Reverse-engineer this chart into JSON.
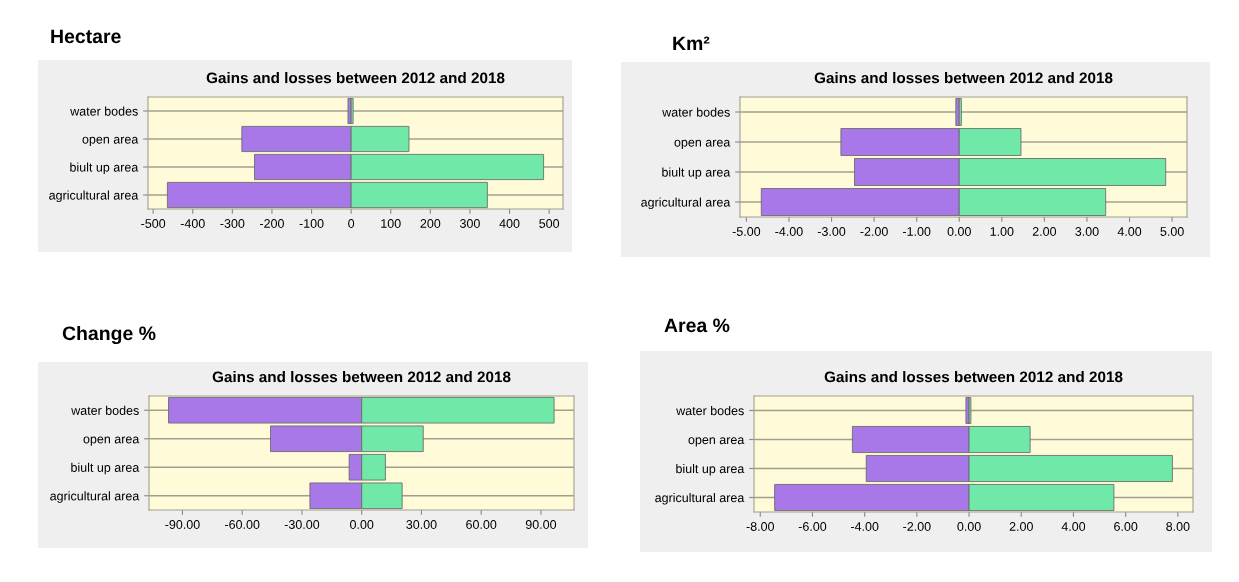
{
  "chart_data": [
    {
      "type": "bar",
      "orientation": "horizontal",
      "stacked": true,
      "title": "Hectare",
      "subtitle": "Gains and losses between 2012 and 2018",
      "categories": [
        "water bodes",
        "open area",
        "biult up area",
        "agricultural area"
      ],
      "grid": "y",
      "series": [
        {
          "color": "#a878e8",
          "values": [
            -8,
            -276,
            -244,
            -464
          ]
        },
        {
          "color": "#70e8a8",
          "values": [
            5,
            146,
            486,
            344
          ]
        }
      ],
      "xlim": [
        -513,
        535
      ],
      "xticks": [
        -500,
        -400,
        -300,
        -200,
        -100,
        0,
        100,
        200,
        300,
        400,
        500
      ]
    },
    {
      "type": "bar",
      "orientation": "horizontal",
      "stacked": true,
      "title": "Km²",
      "subtitle": "Gains and losses between 2012 and 2018",
      "categories": [
        "water bodes",
        "open area",
        "biult up area",
        "agricultural area"
      ],
      "grid": "y",
      "series": [
        {
          "color": "#a878e8",
          "values": [
            -0.08,
            -2.78,
            -2.46,
            -4.65
          ]
        },
        {
          "color": "#70e8a8",
          "values": [
            0.05,
            1.45,
            4.85,
            3.44
          ]
        }
      ],
      "xlim": [
        -5.15,
        5.35
      ],
      "xticks": [
        {
          "value": -5,
          "label": "-5.00"
        },
        {
          "value": -4,
          "label": "-4.00"
        },
        {
          "value": -3,
          "label": "-3.00"
        },
        {
          "value": -2,
          "label": "-2.00"
        },
        {
          "value": -1,
          "label": "-1.00"
        },
        {
          "value": 0,
          "label": "0.00"
        },
        {
          "value": 1,
          "label": "1.00"
        },
        {
          "value": 2,
          "label": "2.00"
        },
        {
          "value": 3,
          "label": "3.00"
        },
        {
          "value": 4,
          "label": "4.00"
        },
        {
          "value": 5,
          "label": "5.00"
        }
      ]
    },
    {
      "type": "bar",
      "orientation": "horizontal",
      "stacked": true,
      "title": "Change %",
      "subtitle": "Gains and losses between 2012 and 2018",
      "categories": [
        "water bodes",
        "open area",
        "biult up area",
        "agricultural area"
      ],
      "grid": "y",
      "series": [
        {
          "color": "#a878e8",
          "values": [
            -97,
            -45.8,
            -6.3,
            -26
          ]
        },
        {
          "color": "#70e8a8",
          "values": [
            96.6,
            30.9,
            11.9,
            20.3
          ]
        }
      ],
      "xlim": [
        -106.8,
        106.6
      ],
      "xticks": [
        {
          "value": -90,
          "label": "-90.00"
        },
        {
          "value": -60,
          "label": "-60.00"
        },
        {
          "value": -30,
          "label": "-30.00"
        },
        {
          "value": 0,
          "label": "0.00"
        },
        {
          "value": 30,
          "label": "30.00"
        },
        {
          "value": 60,
          "label": "60.00"
        },
        {
          "value": 90,
          "label": "90.00"
        }
      ]
    },
    {
      "type": "bar",
      "orientation": "horizontal",
      "stacked": true,
      "title": "Area %",
      "subtitle": "Gains and losses between 2012 and 2018",
      "categories": [
        "water bodes",
        "open area",
        "biult up area",
        "agricultural area"
      ],
      "grid": "y",
      "series": [
        {
          "color": "#a878e8",
          "values": [
            -0.12,
            -4.47,
            -3.94,
            -7.45
          ]
        },
        {
          "color": "#70e8a8",
          "values": [
            0.07,
            2.34,
            7.79,
            5.55
          ]
        }
      ],
      "xlim": [
        -8.24,
        8.58
      ],
      "xticks": [
        {
          "value": -8,
          "label": "-8.00"
        },
        {
          "value": -6,
          "label": "-6.00"
        },
        {
          "value": -4,
          "label": "-4.00"
        },
        {
          "value": -2,
          "label": "-2.00"
        },
        {
          "value": 0,
          "label": "0.00"
        },
        {
          "value": 2,
          "label": "2.00"
        },
        {
          "value": 4,
          "label": "4.00"
        },
        {
          "value": 6,
          "label": "6.00"
        },
        {
          "value": 8,
          "label": "8.00"
        }
      ]
    }
  ]
}
